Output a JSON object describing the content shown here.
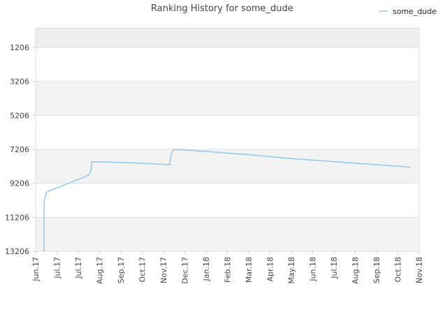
{
  "chart_data": {
    "type": "line",
    "title": "Ranking History for some_dude",
    "xlabel": "",
    "ylabel": "",
    "y_inverted": true,
    "ylim": [
      1206,
      13206
    ],
    "y_ticks": [
      "1206",
      "3206",
      "5206",
      "7206",
      "9206",
      "11206",
      "13206"
    ],
    "x_ticks": [
      "Jun.17",
      "Jul.17",
      "Jul.17",
      "Aug.17",
      "Sep.17",
      "Oct.17",
      "Nov.17",
      "Dec.17",
      "Jan.18",
      "Feb.18",
      "Mar.18",
      "Apr.18",
      "May.18",
      "Jun.18",
      "Jul.18",
      "Aug.18",
      "Sep.18",
      "Oct.18",
      "Nov.18"
    ],
    "legend": {
      "position": "top-right"
    },
    "grid": true,
    "series": [
      {
        "name": "some_dude",
        "color": "#90c8f0",
        "points": [
          {
            "x": 0.4,
            "y": 13206
          },
          {
            "x": 0.4,
            "y": 10300
          },
          {
            "x": 0.5,
            "y": 9750
          },
          {
            "x": 0.6,
            "y": 9670
          },
          {
            "x": 2.3,
            "y": 8830
          },
          {
            "x": 2.5,
            "y": 8700
          },
          {
            "x": 2.6,
            "y": 8450
          },
          {
            "x": 2.65,
            "y": 7950
          },
          {
            "x": 2.7,
            "y": 7930
          },
          {
            "x": 3.2,
            "y": 7950
          },
          {
            "x": 4.4,
            "y": 7990
          },
          {
            "x": 5.2,
            "y": 8040
          },
          {
            "x": 6.0,
            "y": 8090
          },
          {
            "x": 6.3,
            "y": 8110
          },
          {
            "x": 6.35,
            "y": 7550
          },
          {
            "x": 6.45,
            "y": 7230
          },
          {
            "x": 6.55,
            "y": 7210
          },
          {
            "x": 8.0,
            "y": 7330
          },
          {
            "x": 10.0,
            "y": 7520
          },
          {
            "x": 12.0,
            "y": 7750
          },
          {
            "x": 14.0,
            "y": 7930
          },
          {
            "x": 16.0,
            "y": 8110
          },
          {
            "x": 17.6,
            "y": 8260
          }
        ]
      }
    ]
  }
}
